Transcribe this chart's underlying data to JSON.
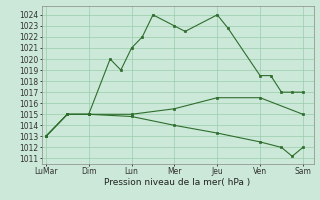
{
  "xlabel": "Pression niveau de la mer( hPa )",
  "day_labels": [
    "LuMar",
    "Dim",
    "Lun",
    "Mer",
    "Jeu",
    "Ven",
    "Sam"
  ],
  "day_positions": [
    0,
    2,
    4,
    6,
    8,
    10,
    12
  ],
  "yticks": [
    1011,
    1012,
    1013,
    1014,
    1015,
    1016,
    1017,
    1018,
    1019,
    1020,
    1021,
    1022,
    1023,
    1024
  ],
  "background_color": "#cce8d8",
  "grid_color": "#99ccaa",
  "line_color": "#2d6e2d",
  "line1_x": [
    0,
    1,
    2,
    3,
    3.5,
    4,
    4.5,
    5,
    6,
    6.5,
    8,
    8.5,
    10,
    10.5,
    11,
    11.5,
    12
  ],
  "line1_y": [
    1013,
    1015,
    1015,
    1020,
    1019,
    1021,
    1022,
    1024,
    1023,
    1022.5,
    1024,
    1022.8,
    1018.5,
    1018.5,
    1017,
    1017,
    1017
  ],
  "line2_x": [
    0,
    1,
    2,
    4,
    6,
    8,
    10,
    12
  ],
  "line2_y": [
    1013,
    1015,
    1015,
    1015,
    1015.5,
    1016.5,
    1016.5,
    1015
  ],
  "line3_x": [
    0,
    1,
    2,
    4,
    6,
    8,
    10,
    11,
    11.5,
    12
  ],
  "line3_y": [
    1013,
    1015,
    1015,
    1014.8,
    1014,
    1013.3,
    1012.5,
    1012,
    1011.2,
    1012
  ],
  "xlim": [
    -0.2,
    12.5
  ],
  "ylim": [
    1010.5,
    1024.8
  ]
}
